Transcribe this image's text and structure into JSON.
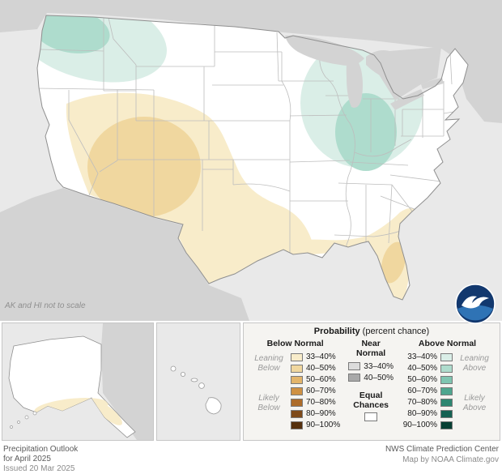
{
  "map": {
    "note": "AK and HI not to scale",
    "colors": {
      "ocean": "#e9e9e9",
      "foreign_land": "#d3d3d3",
      "us_fill": "#ffffff",
      "state_border": "#bdbdbd",
      "us_border": "#8f8f8f"
    },
    "regions": [
      {
        "area": "Pacific Northwest (WA, N OR, N ID, NW MT)",
        "category": "Above Normal",
        "levels": [
          "33–40%",
          "40–50%"
        ]
      },
      {
        "area": "Great Lakes / Midwest (WI, MI, IL, IN, W OH)",
        "category": "Above Normal",
        "levels": [
          "33–40%",
          "40–50%"
        ]
      },
      {
        "area": "Southwest / Four Corners (NV, UT, CO, AZ, NM, W TX)",
        "category": "Below Normal",
        "levels": [
          "33–40%",
          "40–50%"
        ]
      },
      {
        "area": "Texas and central Gulf Coast",
        "category": "Below Normal",
        "levels": [
          "33–40%"
        ]
      },
      {
        "area": "Florida peninsula and Southeast coast",
        "category": "Below Normal",
        "levels": [
          "33–40%",
          "40–50%"
        ]
      },
      {
        "area": "Southern Alaska coast",
        "category": "Below Normal",
        "levels": [
          "33–40%"
        ]
      },
      {
        "area": "Remainder of CONUS, AK and HI",
        "category": "Equal Chances",
        "levels": []
      }
    ]
  },
  "legend": {
    "title_bold": "Probability",
    "title_rest": "(percent chance)",
    "below": {
      "header": "Below Normal",
      "leaning": "Leaning\nBelow",
      "likely": "Likely\nBelow",
      "rows": [
        {
          "label": "33–40%",
          "color": "#f8ecca"
        },
        {
          "label": "40–50%",
          "color": "#f0d79f"
        },
        {
          "label": "50–60%",
          "color": "#e3b56b"
        },
        {
          "label": "60–70%",
          "color": "#cf9143"
        },
        {
          "label": "70–80%",
          "color": "#ad6c2a"
        },
        {
          "label": "80–90%",
          "color": "#7e4a1a"
        },
        {
          "label": "90–100%",
          "color": "#55300e"
        }
      ]
    },
    "near": {
      "header": "Near\nNormal",
      "rows": [
        {
          "label": "33–40%",
          "color": "#dcdcdc"
        },
        {
          "label": "40–50%",
          "color": "#a9a9a9"
        }
      ],
      "equal_header": "Equal\nChances",
      "equal_color": "#ffffff"
    },
    "above": {
      "header": "Above Normal",
      "leaning": "Leaning\nAbove",
      "likely": "Likely\nAbove",
      "rows": [
        {
          "label": "33–40%",
          "color": "#daeee7"
        },
        {
          "label": "40–50%",
          "color": "#aedccd"
        },
        {
          "label": "50–60%",
          "color": "#7fc5b1"
        },
        {
          "label": "60–70%",
          "color": "#4fa68f"
        },
        {
          "label": "70–80%",
          "color": "#2d8671"
        },
        {
          "label": "80–90%",
          "color": "#156152"
        },
        {
          "label": "90–100%",
          "color": "#073f33"
        }
      ]
    }
  },
  "logo": {
    "label": "NOAA"
  },
  "footer": {
    "left": [
      "Precipitation Outlook",
      "for April 2025",
      "Issued 20 Mar 2025"
    ],
    "right": [
      "NWS Climate Prediction Center",
      "Map by NOAA Climate.gov"
    ]
  }
}
